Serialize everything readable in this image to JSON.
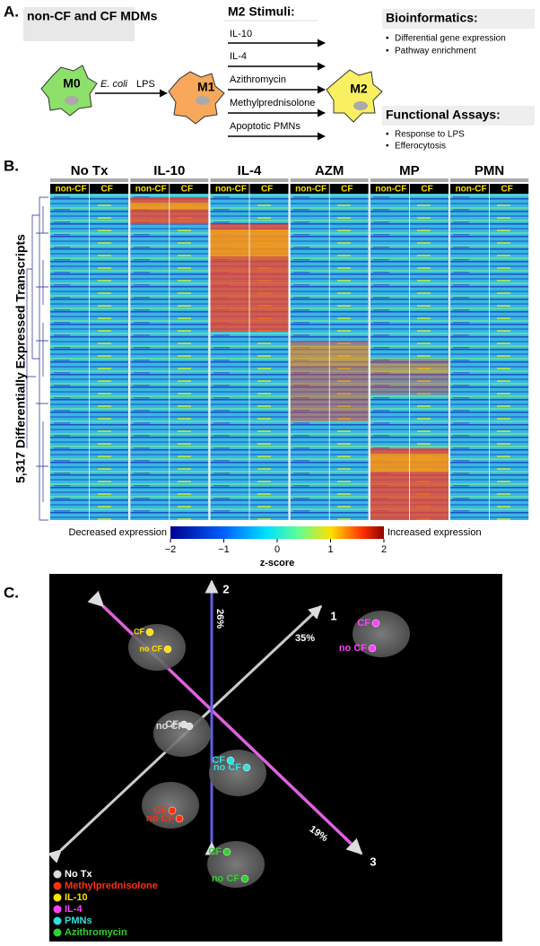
{
  "panel_a": {
    "label": "A.",
    "source": "non-CF and CF MDMs",
    "m0": "M0",
    "lps_prefix": "E. coli",
    "lps": "LPS",
    "m1": "M1",
    "m2": "M2",
    "stimuli_title": "M2 Stimuli:",
    "stimuli": [
      "IL-10",
      "IL-4",
      "Azithromycin",
      "Methylprednisolone",
      "Apoptotic PMNs"
    ],
    "bioinformatics_title": "Bioinformatics:",
    "bioinformatics": [
      "Differential gene expression",
      "Pathway enrichment"
    ],
    "functional_title": "Functional Assays:",
    "functional": [
      "Response to LPS",
      "Efferocytosis"
    ]
  },
  "panel_b": {
    "label": "B.",
    "y_label": "5,317 Differentially Expressed Transcripts",
    "groups": [
      {
        "name": "No Tx",
        "sub": [
          "non-CF",
          "CF"
        ]
      },
      {
        "name": "IL-10",
        "sub": [
          "non-CF",
          "CF"
        ]
      },
      {
        "name": "IL-4",
        "sub": [
          "non-CF",
          "CF"
        ]
      },
      {
        "name": "AZM",
        "sub": [
          "non-CF",
          "CF"
        ]
      },
      {
        "name": "MP",
        "sub": [
          "non-CF",
          "CF"
        ]
      },
      {
        "name": "PMN",
        "sub": [
          "non-CF",
          "CF"
        ]
      }
    ],
    "legend_low": "Decreased expression",
    "legend_high": "Increased expression",
    "colorbar_ticks": [
      "−2",
      "−1",
      "0",
      "1",
      "2"
    ],
    "colorbar_title": "z-score"
  },
  "panel_c": {
    "label": "C.",
    "axes": [
      {
        "name": "1",
        "pct": "35%"
      },
      {
        "name": "2",
        "pct": "26%"
      },
      {
        "name": "3",
        "pct": "19%"
      }
    ],
    "clusters": [
      {
        "points": [
          "CF",
          "no CF"
        ]
      },
      {
        "points": [
          "CF",
          "no CF"
        ]
      },
      {
        "points": [
          "CF",
          "no CF"
        ]
      },
      {
        "points": [
          "CF",
          "no CF"
        ]
      },
      {
        "points": [
          "CF",
          "no CF"
        ]
      },
      {
        "points": [
          "CF",
          "no CF"
        ]
      }
    ],
    "legend": [
      "No Tx",
      "Methylprednisolone",
      "IL-10",
      "IL-4",
      "PMNs",
      "Azithromycin"
    ]
  }
}
